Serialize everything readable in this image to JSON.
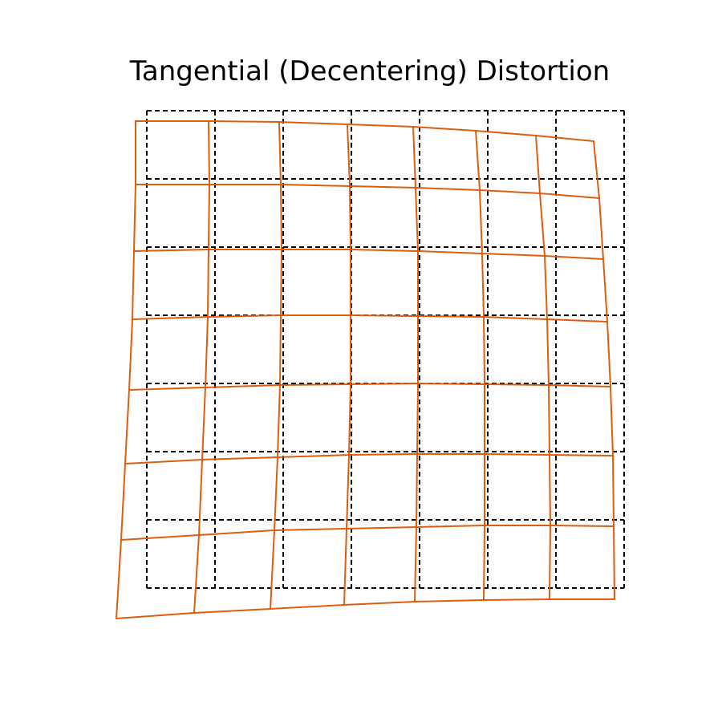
{
  "title": "Tangential (Decentering) Distortion",
  "colors": {
    "reference_grid": "#000000",
    "distorted_grid": "#d95f0e",
    "background": "#ffffff"
  },
  "reference_grid": {
    "style": "dashed",
    "rows": 7,
    "cols": 7
  },
  "distorted_grid": {
    "style": "solid",
    "rows": [
      [
        [
          0,
          -0.0167
        ],
        [
          0.1083,
          -0.0167
        ],
        [
          0.2167,
          -0.0233
        ],
        [
          0.3167,
          -0.03
        ],
        [
          0.4167,
          -0.0367
        ],
        [
          0.5,
          -0.0433
        ],
        [
          0.5833,
          -0.05
        ],
        [
          0.65,
          -0.0633
        ]
      ],
      [
        [
          0,
          0.11
        ],
        [
          0.1083,
          0.1083
        ],
        [
          0.2,
          0.11
        ],
        [
          0.3083,
          0.1133
        ],
        [
          0.4,
          0.1183
        ],
        [
          0.4917,
          0.125
        ],
        [
          0.5833,
          0.1317
        ],
        [
          0.6667,
          0.1417
        ]
      ],
      [
        [
          0,
          0.2517
        ],
        [
          0.1083,
          0.2467
        ],
        [
          0.2,
          0.2467
        ],
        [
          0.3083,
          0.2467
        ],
        [
          0.4,
          0.25
        ],
        [
          0.5,
          0.2567
        ],
        [
          0.6,
          0.2667
        ],
        [
          0.6833,
          0.275
        ]
      ],
      [
        [
          0,
          0.4
        ],
        [
          0.1083,
          0.3933
        ],
        [
          0.2,
          0.39
        ],
        [
          0.3083,
          0.3883
        ],
        [
          0.4,
          0.39
        ],
        [
          0.5,
          0.3933
        ],
        [
          0.5917,
          0.4
        ],
        [
          0.6917,
          0.4067
        ]
      ],
      [
        [
          0,
          0.55
        ],
        [
          0.1083,
          0.5417
        ],
        [
          0.2,
          0.535
        ],
        [
          0.3083,
          0.5317
        ],
        [
          0.4,
          0.53
        ],
        [
          0.5,
          0.5317
        ],
        [
          0.6,
          0.535
        ],
        [
          0.6917,
          0.54
        ]
      ],
      [
        [
          0,
          0.7083
        ],
        [
          0.1083,
          0.695
        ],
        [
          0.2,
          0.6867
        ],
        [
          0.3083,
          0.6817
        ],
        [
          0.4,
          0.68
        ],
        [
          0.5,
          0.6783
        ],
        [
          0.6,
          0.68
        ],
        [
          0.6917,
          0.6817
        ]
      ],
      [
        [
          0,
          0.8683
        ],
        [
          0.1083,
          0.855
        ],
        [
          0.2,
          0.845
        ],
        [
          0.3,
          0.8367
        ],
        [
          0.4,
          0.8317
        ],
        [
          0.5,
          0.8283
        ],
        [
          0.6,
          0.8283
        ],
        [
          0.6917,
          0.83
        ]
      ],
      [
        [
          0,
          1.0333
        ],
        [
          0.1083,
          1.0183
        ],
        [
          0.2083,
          1.0067
        ],
        [
          0.3,
          0.9967
        ],
        [
          0.4,
          0.99
        ],
        [
          0.5,
          0.985
        ],
        [
          0.5917,
          0.9833
        ],
        [
          0.6917,
          0.98
        ]
      ]
    ],
    "cols": [
      [
        [
          0.0833,
          -0.0167
        ],
        [
          0.0833,
          0.11
        ],
        [
          0.0833,
          0.2517
        ],
        [
          0.0833,
          0.4
        ],
        [
          0.0833,
          0.55
        ],
        [
          0.0833,
          0.7083
        ],
        [
          0.0833,
          0.8683
        ],
        [
          0.0833,
          1.0333
        ]
      ],
      [
        [
          0.1333,
          -0.0167
        ],
        [
          0.1333,
          0.1083
        ],
        [
          0.1333,
          0.2467
        ],
        [
          0.1333,
          0.3933
        ],
        [
          0.1333,
          0.5417
        ],
        [
          0.1333,
          0.695
        ],
        [
          0.1333,
          0.855
        ],
        [
          0.1333,
          1.0183
        ]
      ],
      [
        [
          0.2167,
          -0.0233
        ],
        [
          0.2167,
          0.11
        ],
        [
          0.2167,
          0.2467
        ],
        [
          0.2083,
          0.39
        ],
        [
          0.2083,
          0.535
        ],
        [
          0.2083,
          0.6867
        ],
        [
          0.2083,
          0.845
        ],
        [
          0.2083,
          1.0067
        ]
      ],
      [
        [
          0.3,
          -0.03
        ],
        [
          0.3,
          0.1133
        ],
        [
          0.3,
          0.2467
        ],
        [
          0.3,
          0.3883
        ],
        [
          0.3,
          0.5317
        ],
        [
          0.3,
          0.6817
        ],
        [
          0.3,
          0.8367
        ],
        [
          0.3,
          0.9967
        ]
      ],
      [
        [
          0.4083,
          -0.0367
        ],
        [
          0.4083,
          0.1183
        ],
        [
          0.4083,
          0.25
        ],
        [
          0.4083,
          0.39
        ],
        [
          0.4083,
          0.53
        ],
        [
          0.4083,
          0.68
        ],
        [
          0.4083,
          0.8317
        ],
        [
          0.4083,
          0.99
        ]
      ],
      [
        [
          0.5,
          -0.0433
        ],
        [
          0.5,
          0.125
        ],
        [
          0.5,
          0.2567
        ],
        [
          0.5,
          0.3933
        ],
        [
          0.5,
          0.5317
        ],
        [
          0.5,
          0.6783
        ],
        [
          0.5,
          0.8283
        ],
        [
          0.5,
          0.985
        ]
      ],
      [
        [
          0.5917,
          -0.05
        ],
        [
          0.5917,
          0.1317
        ],
        [
          0.5917,
          0.2667
        ],
        [
          0.5917,
          0.4
        ],
        [
          0.5917,
          0.535
        ],
        [
          0.5917,
          0.68
        ],
        [
          0.5917,
          0.8283
        ],
        [
          0.5917,
          0.9833
        ]
      ],
      [
        [
          0.6833,
          -0.0633
        ],
        [
          0.6833,
          0.1417
        ],
        [
          0.6833,
          0.275
        ],
        [
          0.6917,
          0.4067
        ],
        [
          0.6917,
          0.54
        ],
        [
          0.6917,
          0.6817
        ],
        [
          0.6917,
          0.83
        ],
        [
          0.6917,
          0.98
        ]
      ]
    ]
  }
}
